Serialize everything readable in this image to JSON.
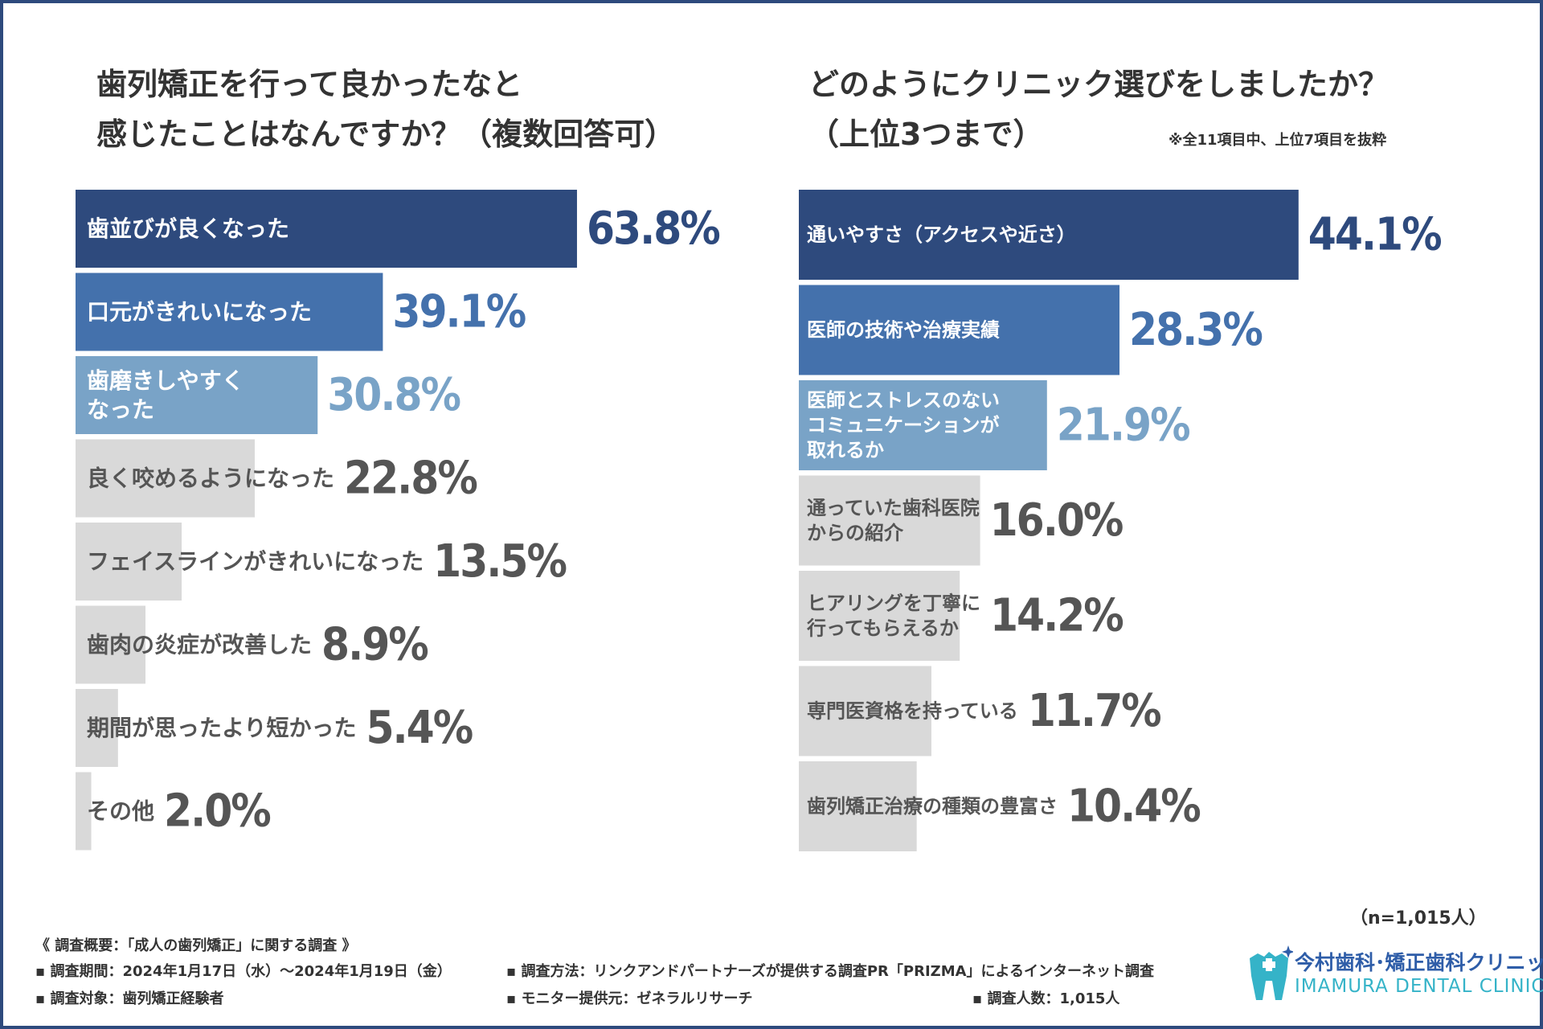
{
  "colors": {
    "navy": "#2e4a7d",
    "mid_blue": "#4471ac",
    "light_blue": "#79a3c7",
    "gray_bar": "#d9d9d9",
    "dark_text": "#555555",
    "logo_blue": "#2e5da8",
    "logo_teal": "#35b3c8"
  },
  "left_title": {
    "line1": "歯列矯正を行って良かったなと",
    "line2": "感じたことはなんですか？（複数回答可）"
  },
  "right_title": {
    "line1": "どのようにクリニック選びをしましたか？",
    "line2": "（上位3つまで）",
    "note": "※全11項目中、上位7項目を抜粋"
  },
  "chart_data": [
    {
      "type": "bar",
      "orientation": "horizontal",
      "title": "歯列矯正を行って良かったなと感じたことはなんですか？（複数回答可）",
      "unit": "%",
      "xlim": [
        0,
        100
      ],
      "categories": [
        [
          "歯並びが良くなった"
        ],
        [
          "口元がきれいになった"
        ],
        [
          "歯磨きしやすく",
          "なった"
        ],
        [
          "良く咬めるようになった"
        ],
        [
          "フェイスラインがきれいになった"
        ],
        [
          "歯肉の炎症が改善した"
        ],
        [
          "期間が思ったより短かった"
        ],
        [
          "その他"
        ]
      ],
      "values": [
        63.8,
        39.1,
        30.8,
        22.8,
        13.5,
        8.9,
        5.4,
        2.0
      ],
      "value_labels": [
        "63.8%",
        "39.1%",
        "30.8%",
        "22.8%",
        "13.5%",
        "8.9%",
        "5.4%",
        "2.0%"
      ]
    },
    {
      "type": "bar",
      "orientation": "horizontal",
      "title": "どのようにクリニック選びをしましたか？（上位3つまで）",
      "unit": "%",
      "xlim": [
        0,
        100
      ],
      "categories": [
        [
          "通いやすさ（アクセスや近さ）"
        ],
        [
          "医師の技術や治療実績"
        ],
        [
          "医師とストレスのない",
          "コミュニケーションが",
          "取れるか"
        ],
        [
          "通っていた歯科医院",
          "からの紹介"
        ],
        [
          "ヒアリングを丁寧に",
          "行ってもらえるか"
        ],
        [
          "専門医資格を持っている"
        ],
        [
          "歯列矯正治療の種類の豊富さ"
        ]
      ],
      "values": [
        44.1,
        28.3,
        21.9,
        16.0,
        14.2,
        11.7,
        10.4
      ],
      "value_labels": [
        "44.1%",
        "28.3%",
        "21.9%",
        "16.0%",
        "14.2%",
        "11.7%",
        "10.4%"
      ]
    }
  ],
  "footer": {
    "n": "（n=1,015人）",
    "summary": "《 調査概要：「成人の歯列矯正」に関する調査 》",
    "period": "▪ 調査期間：2024年1月17日（水）～2024年1月19日（金）",
    "method": "▪ 調査方法：リンクアンドパートナーズが提供する調査PR「PRIZMA」によるインターネット調査",
    "target": "▪ 調査対象：歯列矯正経験者",
    "monitor": "▪ モニター提供元：ゼネラルリサーチ",
    "count": "▪ 調査人数：1,015人"
  },
  "logo": {
    "name": "今村歯科･矯正歯科クリニック",
    "name_en": "IMAMURA DENTAL CLINIC",
    "icon": "tooth-cross-icon"
  }
}
